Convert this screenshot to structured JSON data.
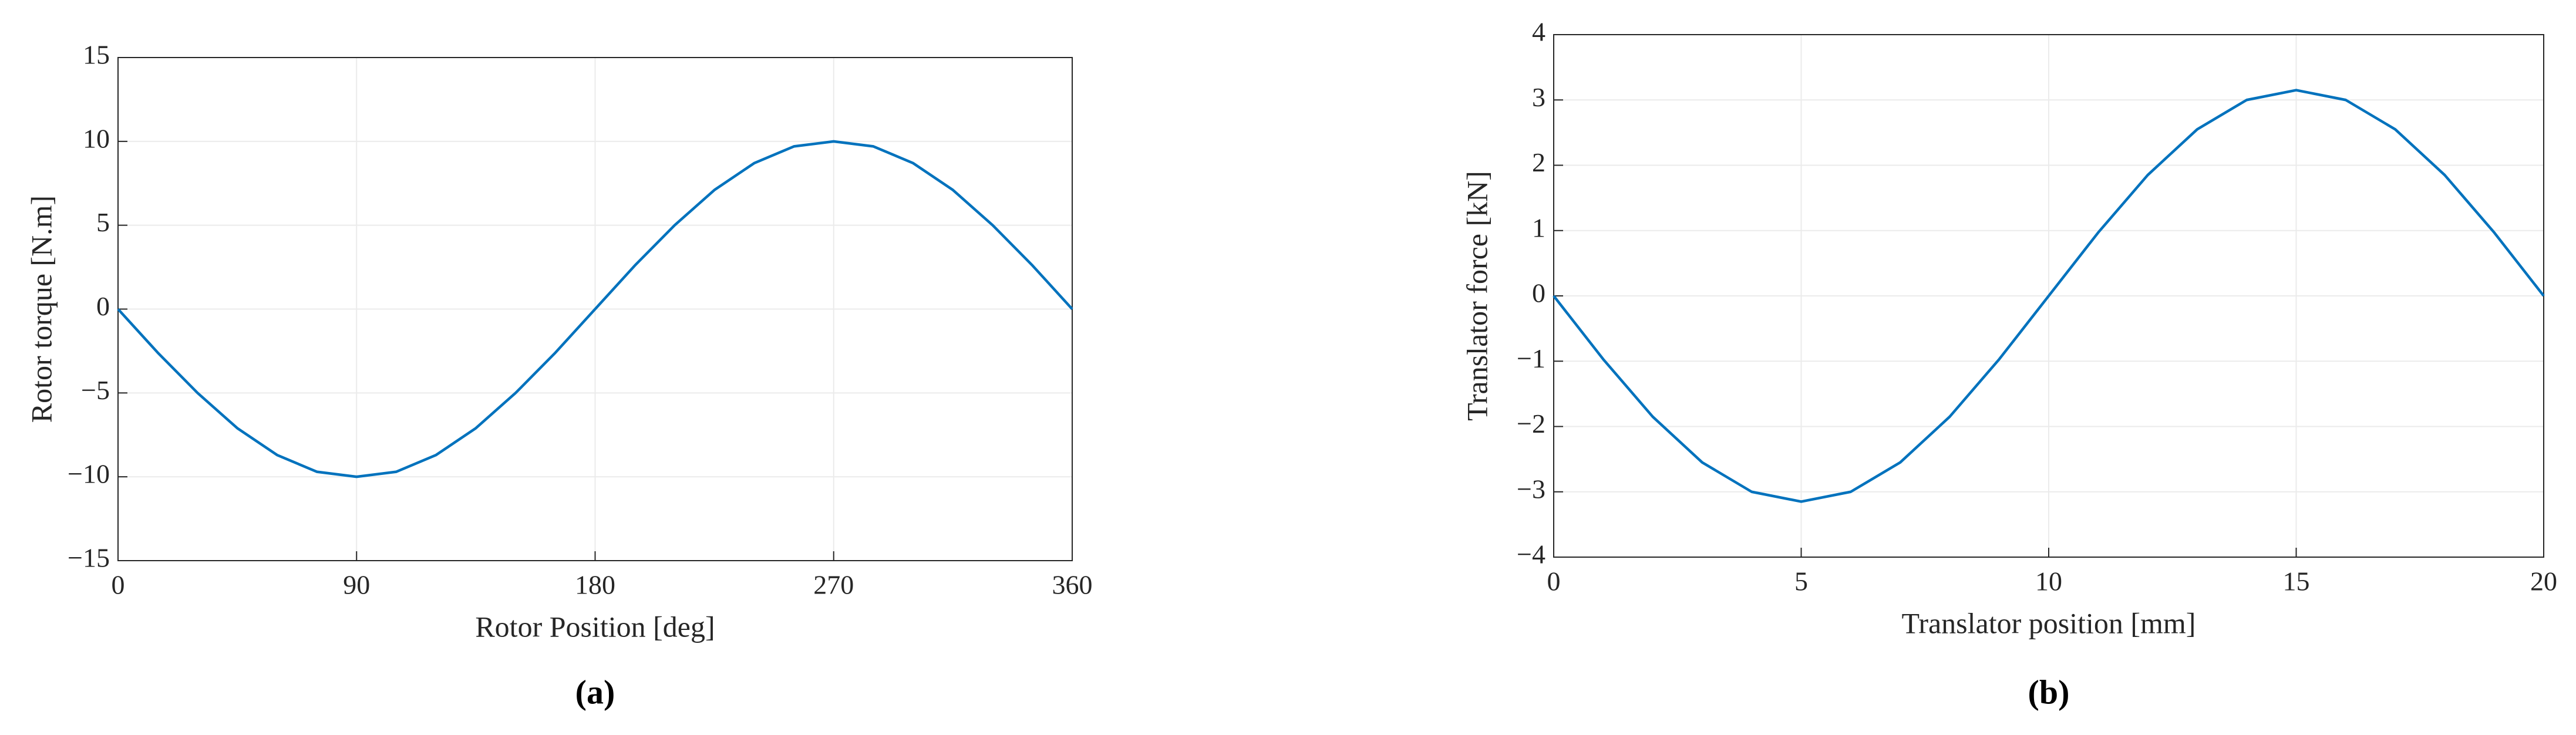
{
  "chart_data": [
    {
      "type": "line",
      "panel_label": "(a)",
      "xlabel": "Rotor Position [deg]",
      "ylabel": "Rotor torque [N.m]",
      "xlim": [
        0,
        360
      ],
      "xticks": [
        0,
        90,
        180,
        270,
        360
      ],
      "ylim": [
        -15,
        15
      ],
      "yticks": [
        {
          "value": -15,
          "label": "−15"
        },
        {
          "value": -10,
          "label": "−10"
        },
        {
          "value": -5,
          "label": "−5"
        },
        0,
        5,
        10,
        15
      ],
      "grid": true,
      "x": [
        0,
        15,
        30,
        45,
        60,
        75,
        90,
        105,
        120,
        135,
        150,
        165,
        180,
        195,
        210,
        225,
        240,
        255,
        270,
        285,
        300,
        315,
        330,
        345,
        360
      ],
      "series": [
        {
          "color": "#0072bd",
          "values": [
            0,
            -2.6,
            -5.0,
            -7.1,
            -8.7,
            -9.7,
            -10,
            -9.7,
            -8.7,
            -7.1,
            -5.0,
            -2.6,
            0,
            2.6,
            5.0,
            7.1,
            8.7,
            9.7,
            10,
            9.7,
            8.7,
            7.1,
            5.0,
            2.6,
            0
          ]
        }
      ]
    },
    {
      "type": "line",
      "panel_label": "(b)",
      "xlabel": "Translator position [mm]",
      "ylabel": "Translator force [kN]",
      "xlim": [
        0,
        20
      ],
      "xticks": [
        0,
        5,
        10,
        15,
        20
      ],
      "ylim": [
        -4,
        4
      ],
      "yticks": [
        {
          "value": -4,
          "label": "−4"
        },
        {
          "value": -3,
          "label": "−3"
        },
        {
          "value": -2,
          "label": "−2"
        },
        {
          "value": -1,
          "label": "−1"
        },
        0,
        1,
        2,
        3,
        4
      ],
      "grid": true,
      "x": [
        0,
        1,
        2,
        3,
        4,
        5,
        6,
        7,
        8,
        9,
        10,
        11,
        12,
        13,
        14,
        15,
        16,
        17,
        18,
        19,
        20
      ],
      "series": [
        {
          "color": "#0072bd",
          "values": [
            0,
            -0.97,
            -1.85,
            -2.55,
            -3.0,
            -3.15,
            -3.0,
            -2.55,
            -1.85,
            -0.97,
            0,
            0.97,
            1.85,
            2.55,
            3.0,
            3.15,
            3.0,
            2.55,
            1.85,
            0.97,
            0
          ]
        }
      ]
    }
  ]
}
